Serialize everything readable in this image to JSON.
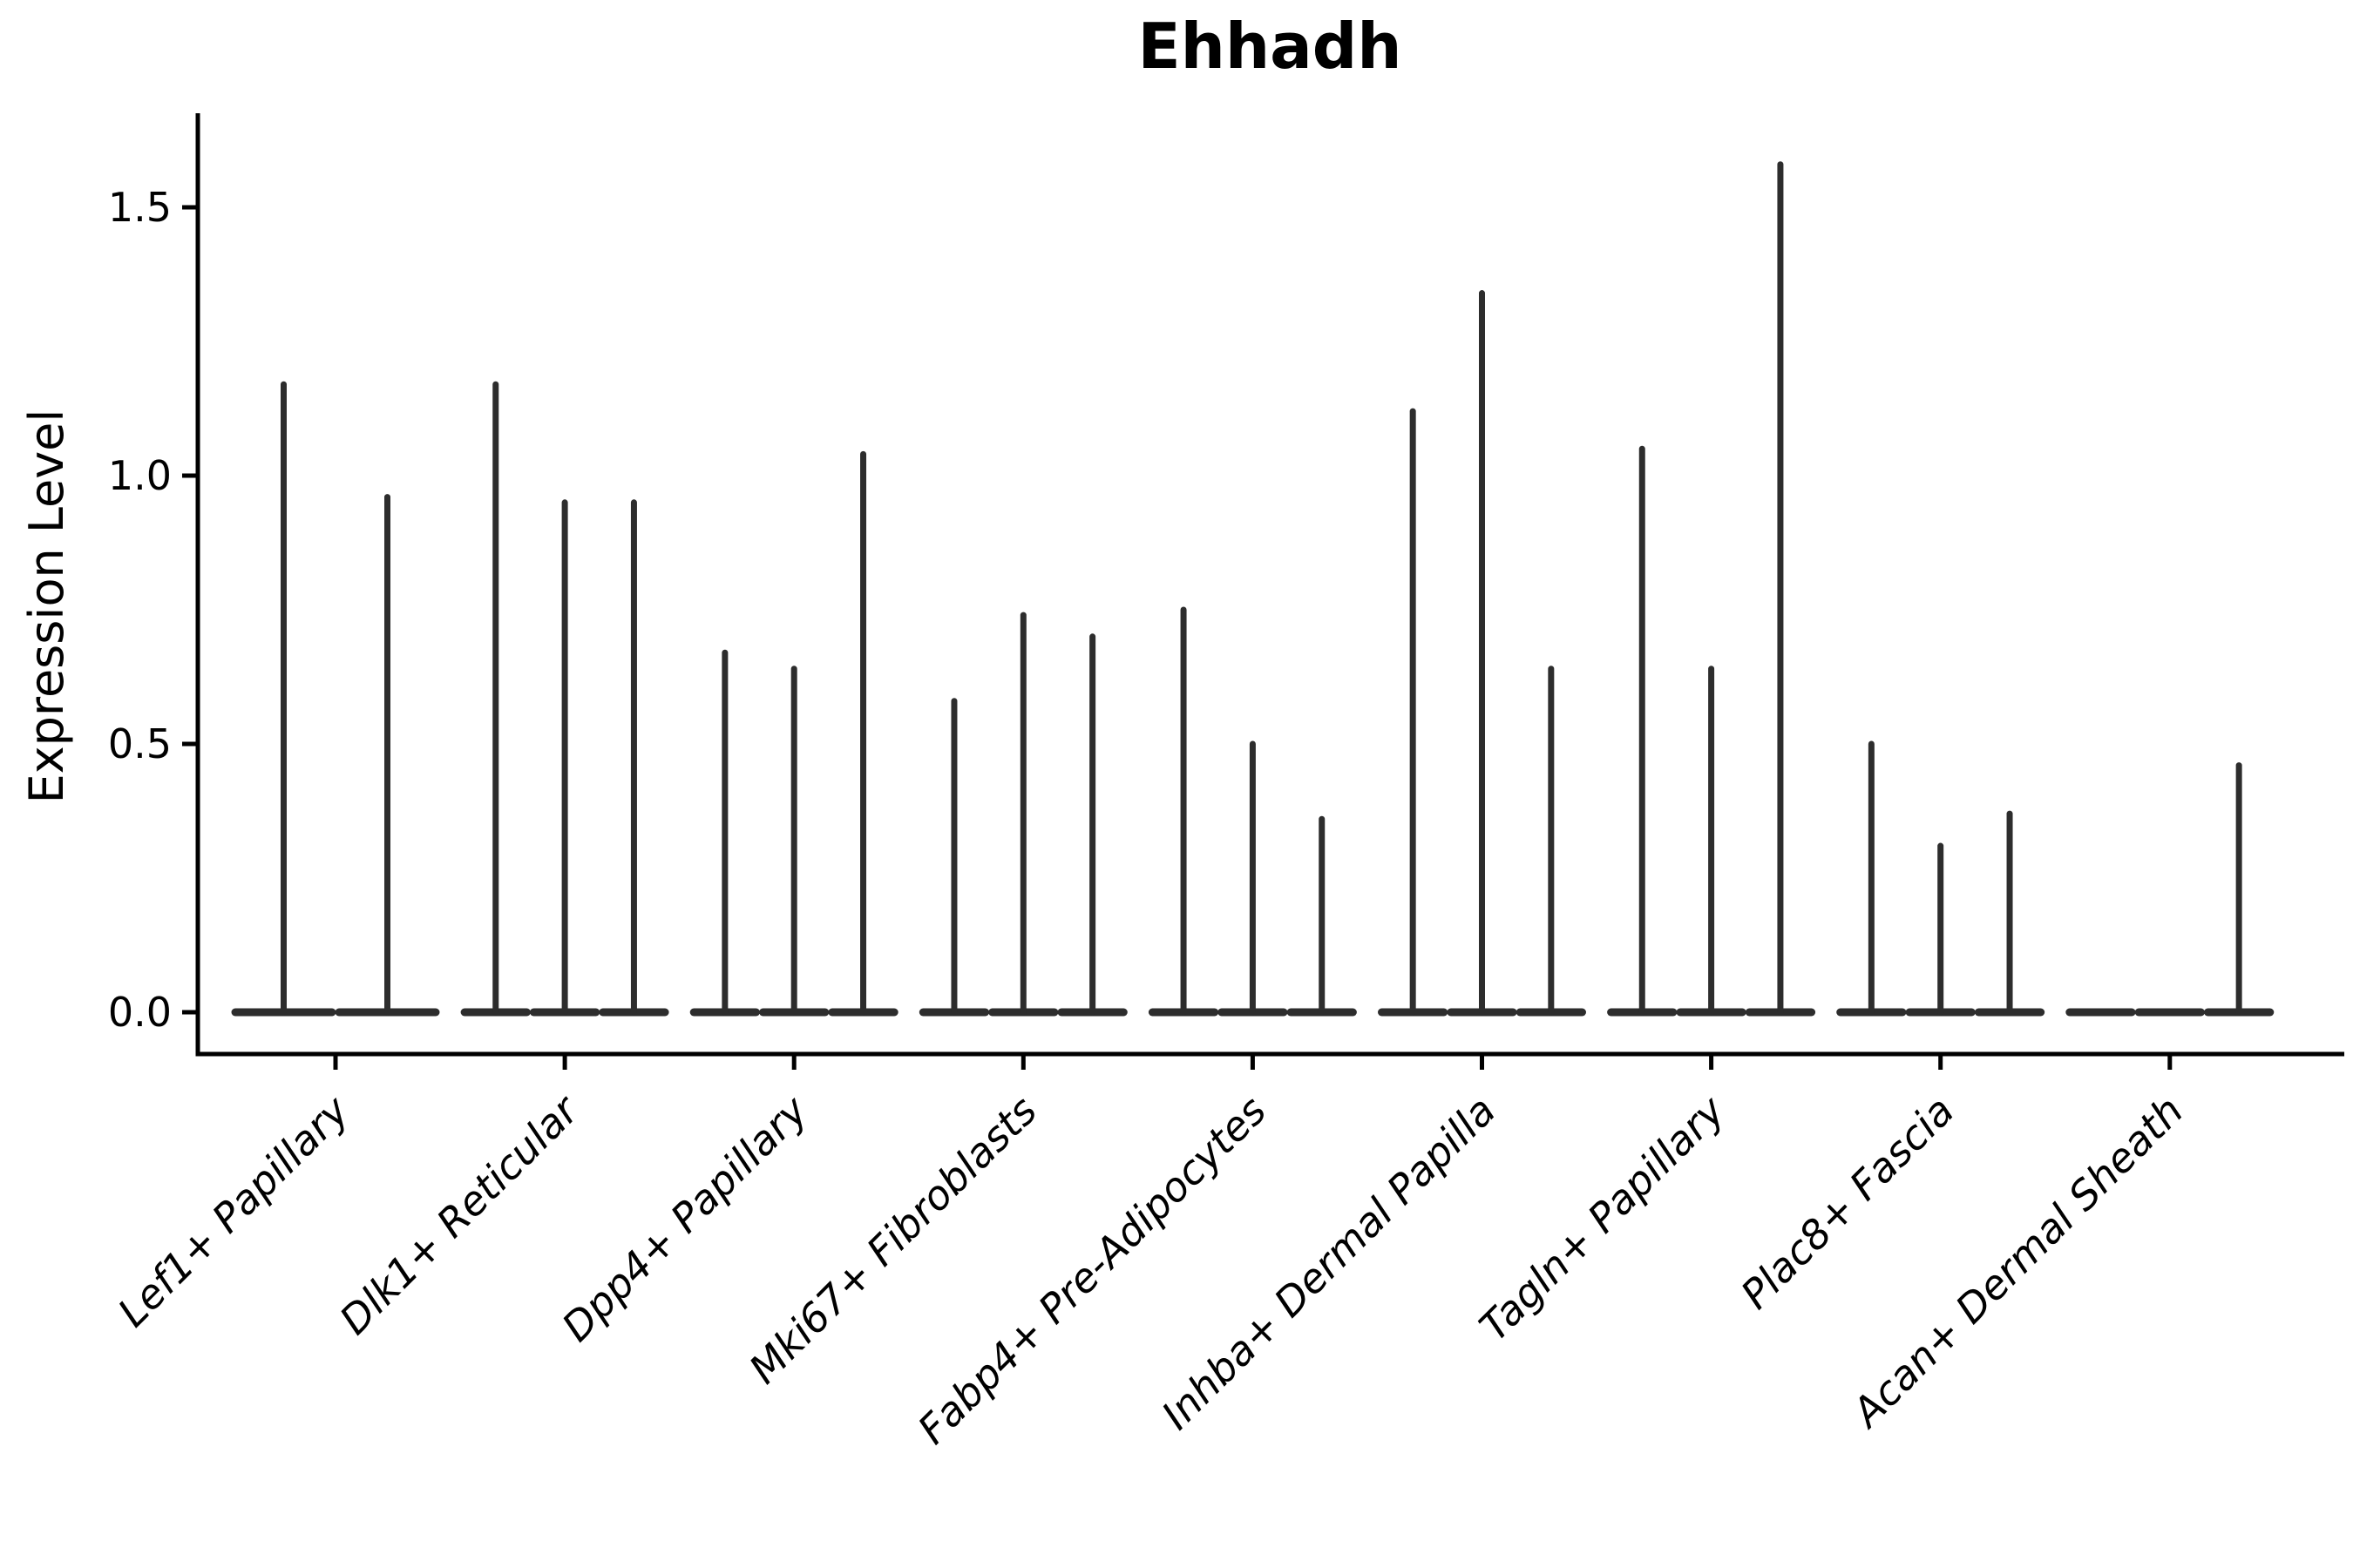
{
  "title": "Ehhadh",
  "y_axis": {
    "label": "Expression Level",
    "tick_labels": [
      "0.0",
      "0.5",
      "1.0",
      "1.5"
    ]
  },
  "chart_data": {
    "type": "violin",
    "title": "Ehhadh",
    "xlabel": "",
    "ylabel": "Expression Level",
    "yticks": [
      0.0,
      0.5,
      1.0,
      1.5
    ],
    "ytick_labels": [
      "0.0",
      "0.5",
      "1.0",
      "1.5"
    ],
    "ylim": [
      -0.08,
      1.68
    ],
    "grid": false,
    "legend": "none",
    "categories": [
      "Lef1+ Papillary",
      "Dlk1+ Reticular",
      "Dpp4+ Papillary",
      "Mki67+ Fibroblasts",
      "Fabp4+ Pre-Adipocytes",
      "Inhba+ Dermal Papilla",
      "Tagln+ Papillary",
      "Plac8+ Fascia",
      "Acan+ Dermal Sheath"
    ],
    "series": [
      {
        "label": "Lef1+ Papillary",
        "violin_peaks": [
          1.17,
          0.96
        ]
      },
      {
        "label": "Dlk1+ Reticular",
        "violin_peaks": [
          1.17,
          0.95,
          0.95
        ]
      },
      {
        "label": "Dpp4+ Papillary",
        "violin_peaks": [
          0.67,
          0.64,
          1.04
        ]
      },
      {
        "label": "Mki67+ Fibroblasts",
        "violin_peaks": [
          0.58,
          0.74,
          0.7
        ]
      },
      {
        "label": "Fabp4+ Pre-Adipocytes",
        "violin_peaks": [
          0.75,
          0.5,
          0.36
        ]
      },
      {
        "label": "Inhba+ Dermal Papilla",
        "violin_peaks": [
          1.12,
          1.34,
          0.64
        ]
      },
      {
        "label": "Tagln+ Papillary",
        "violin_peaks": [
          1.05,
          0.64,
          1.58
        ]
      },
      {
        "label": "Plac8+ Fascia",
        "violin_peaks": [
          0.5,
          0.31,
          0.37
        ]
      },
      {
        "label": "Acan+ Dermal Sheath",
        "violin_peaks": [
          0.0,
          0.0,
          0.46
        ]
      }
    ],
    "style": {
      "violin_color": "#2d2d2d",
      "axis_color": "#000000",
      "background": "#ffffff",
      "shape_note": "violins are extremely wide at expression 0 (flat base bar) and needle-thin above, forming T-shaped spikes"
    }
  }
}
